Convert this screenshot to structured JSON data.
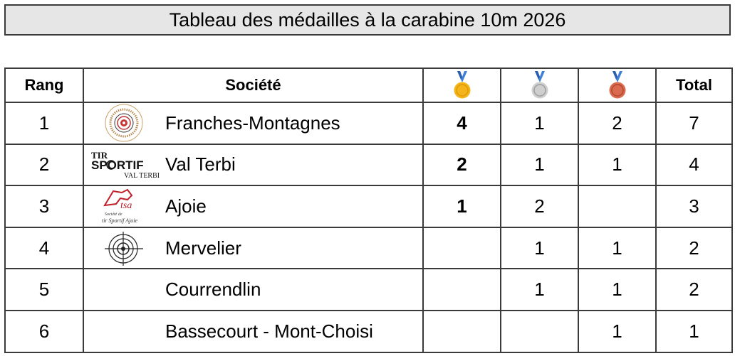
{
  "title": "Tableau des médailles à la carabine 10m 2026",
  "headers": {
    "rank": "Rang",
    "society": "Société",
    "gold": "gold-medal-icon",
    "silver": "silver-medal-icon",
    "bronze": "bronze-medal-icon",
    "total": "Total"
  },
  "colors": {
    "gold": "#f3b51b",
    "silver": "#c9c9c9",
    "bronze": "#d96a4f",
    "ribbon": "#3f7fd6"
  },
  "rows": [
    {
      "rank": "1",
      "society": "Franches-Montagnes",
      "gold": "4",
      "silver": "1",
      "bronze": "2",
      "total": "7",
      "logo": "franches-montagnes-logo"
    },
    {
      "rank": "2",
      "society": "Val Terbi",
      "gold": "2",
      "silver": "1",
      "bronze": "1",
      "total": "4",
      "logo": "tir-sportif-val-terbi-logo",
      "logo_text": [
        "TIR",
        "SPORTIF",
        "VAL TERBI"
      ]
    },
    {
      "rank": "3",
      "society": "Ajoie",
      "gold": "1",
      "silver": "2",
      "bronze": "",
      "total": "3",
      "logo": "tsa-ajoie-logo",
      "logo_text": [
        "tsa",
        "Société de",
        "tir Sportif Ajoie"
      ]
    },
    {
      "rank": "4",
      "society": "Mervelier",
      "gold": "",
      "silver": "1",
      "bronze": "1",
      "total": "2",
      "logo": "mervelier-target-logo"
    },
    {
      "rank": "5",
      "society": "Courrendlin",
      "gold": "",
      "silver": "1",
      "bronze": "1",
      "total": "2",
      "logo": ""
    },
    {
      "rank": "6",
      "society": "Bassecourt - Mont-Choisi",
      "gold": "",
      "silver": "",
      "bronze": "1",
      "total": "1",
      "logo": ""
    }
  ]
}
